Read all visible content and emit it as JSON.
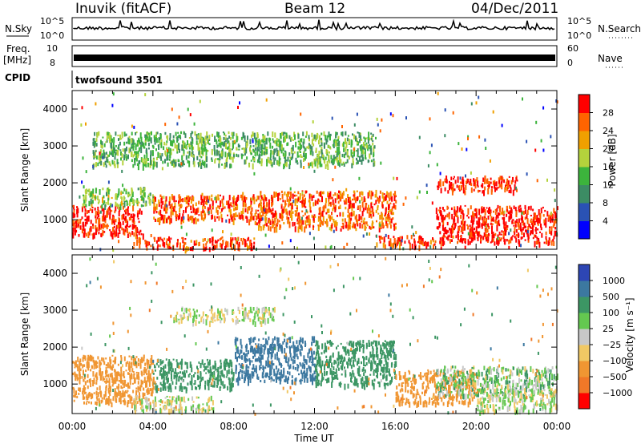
{
  "header": {
    "station": "Inuvik (fitACF)",
    "beam": "Beam 12",
    "date": "04/Dec/2011"
  },
  "strips": {
    "nsky_label": "N.Sky",
    "nsky_ticks": [
      "10^5",
      "10^0"
    ],
    "nsearch_label": "N.Search",
    "nsearch_ticks": [
      "10^5",
      "10^0"
    ],
    "freq_label": "Freq.",
    "freq_unit": "[MHz]",
    "freq_ticks": [
      "10",
      "8"
    ],
    "nave_label": "Nave",
    "nave_ticks": [
      "60",
      "0"
    ],
    "cpid_label": "CPID",
    "cpid_value": "twofsound 3501"
  },
  "x_axis": {
    "label": "Time UT",
    "ticks": [
      "00:00",
      "04:00",
      "08:00",
      "12:00",
      "16:00",
      "20:00",
      "00:00"
    ]
  },
  "chart_data": [
    {
      "type": "heatmap",
      "panel": "power",
      "ylabel": "Slant Range [km]",
      "yticks": [
        "1000",
        "2000",
        "3000",
        "4000"
      ],
      "ylim": [
        200,
        4500
      ],
      "xlim_hours": [
        0,
        24
      ],
      "colorbar_label": "Power [dB]",
      "colorbar_ticks": [
        "4",
        "8",
        "12",
        "16",
        "20",
        "24",
        "28"
      ],
      "colorbar_colors": [
        "#0000ff",
        "#2a52b4",
        "#3c8c64",
        "#3cb43c",
        "#b4d23c",
        "#f0a000",
        "#ff6400",
        "#ff0000"
      ],
      "regions": [
        {
          "t0": 0,
          "t1": 3.5,
          "r0": 600,
          "r1": 1400,
          "level": 28
        },
        {
          "t0": 0.5,
          "t1": 4,
          "r0": 1400,
          "r1": 1900,
          "level": 14
        },
        {
          "t0": 4,
          "t1": 9,
          "r0": 1000,
          "r1": 1700,
          "level": 24
        },
        {
          "t0": 3,
          "t1": 9,
          "r0": 250,
          "r1": 550,
          "level": 26
        },
        {
          "t0": 9,
          "t1": 16,
          "r0": 800,
          "r1": 1800,
          "level": 24
        },
        {
          "t0": 15,
          "t1": 18,
          "r0": 300,
          "r1": 600,
          "level": 26
        },
        {
          "t0": 18,
          "t1": 24,
          "r0": 400,
          "r1": 1400,
          "level": 28
        },
        {
          "t0": 18,
          "t1": 22,
          "r0": 1800,
          "r1": 2200,
          "level": 28
        },
        {
          "t0": 1,
          "t1": 15,
          "r0": 2500,
          "r1": 3400,
          "level": 12
        }
      ]
    },
    {
      "type": "heatmap",
      "panel": "velocity",
      "ylabel": "Slant Range [km]",
      "yticks": [
        "1000",
        "2000",
        "3000",
        "4000"
      ],
      "ylim": [
        200,
        4500
      ],
      "xlim_hours": [
        0,
        24
      ],
      "colorbar_label": "Velocity [m s⁻¹]",
      "colorbar_ticks": [
        "1000",
        "500",
        "100",
        "25",
        "−25",
        "−100",
        "−500",
        "−1000"
      ],
      "colorbar_colors": [
        "#2d46b4",
        "#3c78a0",
        "#3c9664",
        "#64c850",
        "#c8c8c8",
        "#f0c864",
        "#f09632",
        "#f07828",
        "#ff0000"
      ],
      "regions": [
        {
          "t0": 0,
          "t1": 4,
          "r0": 500,
          "r1": 1800,
          "level": -300
        },
        {
          "t0": 4,
          "t1": 8,
          "r0": 900,
          "r1": 1700,
          "level": 200
        },
        {
          "t0": 8,
          "t1": 12,
          "r0": 1100,
          "r1": 2300,
          "level": 700
        },
        {
          "t0": 12,
          "t1": 16,
          "r0": 1000,
          "r1": 2200,
          "level": 300
        },
        {
          "t0": 16,
          "t1": 20,
          "r0": 500,
          "r1": 1400,
          "level": -300
        },
        {
          "t0": 18,
          "t1": 24,
          "r0": 700,
          "r1": 1500,
          "level": 60
        },
        {
          "t0": 20,
          "t1": 24,
          "r0": 300,
          "r1": 900,
          "level": 0
        },
        {
          "t0": 3,
          "t1": 7,
          "r0": 300,
          "r1": 700,
          "level": 0
        },
        {
          "t0": 5,
          "t1": 10,
          "r0": 2700,
          "r1": 3100,
          "level": 0
        }
      ]
    }
  ]
}
